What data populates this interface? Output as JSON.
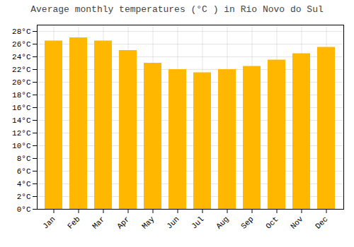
{
  "chart_data": {
    "type": "bar",
    "title": "Average monthly temperatures (°C ) in Rio Novo do Sul",
    "categories": [
      "Jan",
      "Feb",
      "Mar",
      "Apr",
      "May",
      "Jun",
      "Jul",
      "Aug",
      "Sep",
      "Oct",
      "Nov",
      "Dec"
    ],
    "values": [
      26.5,
      27.0,
      26.5,
      25.0,
      23.0,
      22.0,
      21.5,
      22.0,
      22.5,
      23.5,
      24.5,
      25.5
    ],
    "color": "#FFB700",
    "ylim": [
      0,
      29
    ],
    "yticks": [
      {
        "value": 0,
        "label": "0°C"
      },
      {
        "value": 2,
        "label": "2°C"
      },
      {
        "value": 4,
        "label": "4°C"
      },
      {
        "value": 6,
        "label": "6°C"
      },
      {
        "value": 8,
        "label": "8°C"
      },
      {
        "value": 10,
        "label": "10°C"
      },
      {
        "value": 12,
        "label": "12°C"
      },
      {
        "value": 14,
        "label": "14°C"
      },
      {
        "value": 16,
        "label": "16°C"
      },
      {
        "value": 18,
        "label": "18°C"
      },
      {
        "value": 20,
        "label": "20°C"
      },
      {
        "value": 22,
        "label": "22°C"
      },
      {
        "value": 24,
        "label": "24°C"
      },
      {
        "value": 26,
        "label": "26°C"
      },
      {
        "value": 28,
        "label": "28°C"
      }
    ],
    "grid": true
  }
}
